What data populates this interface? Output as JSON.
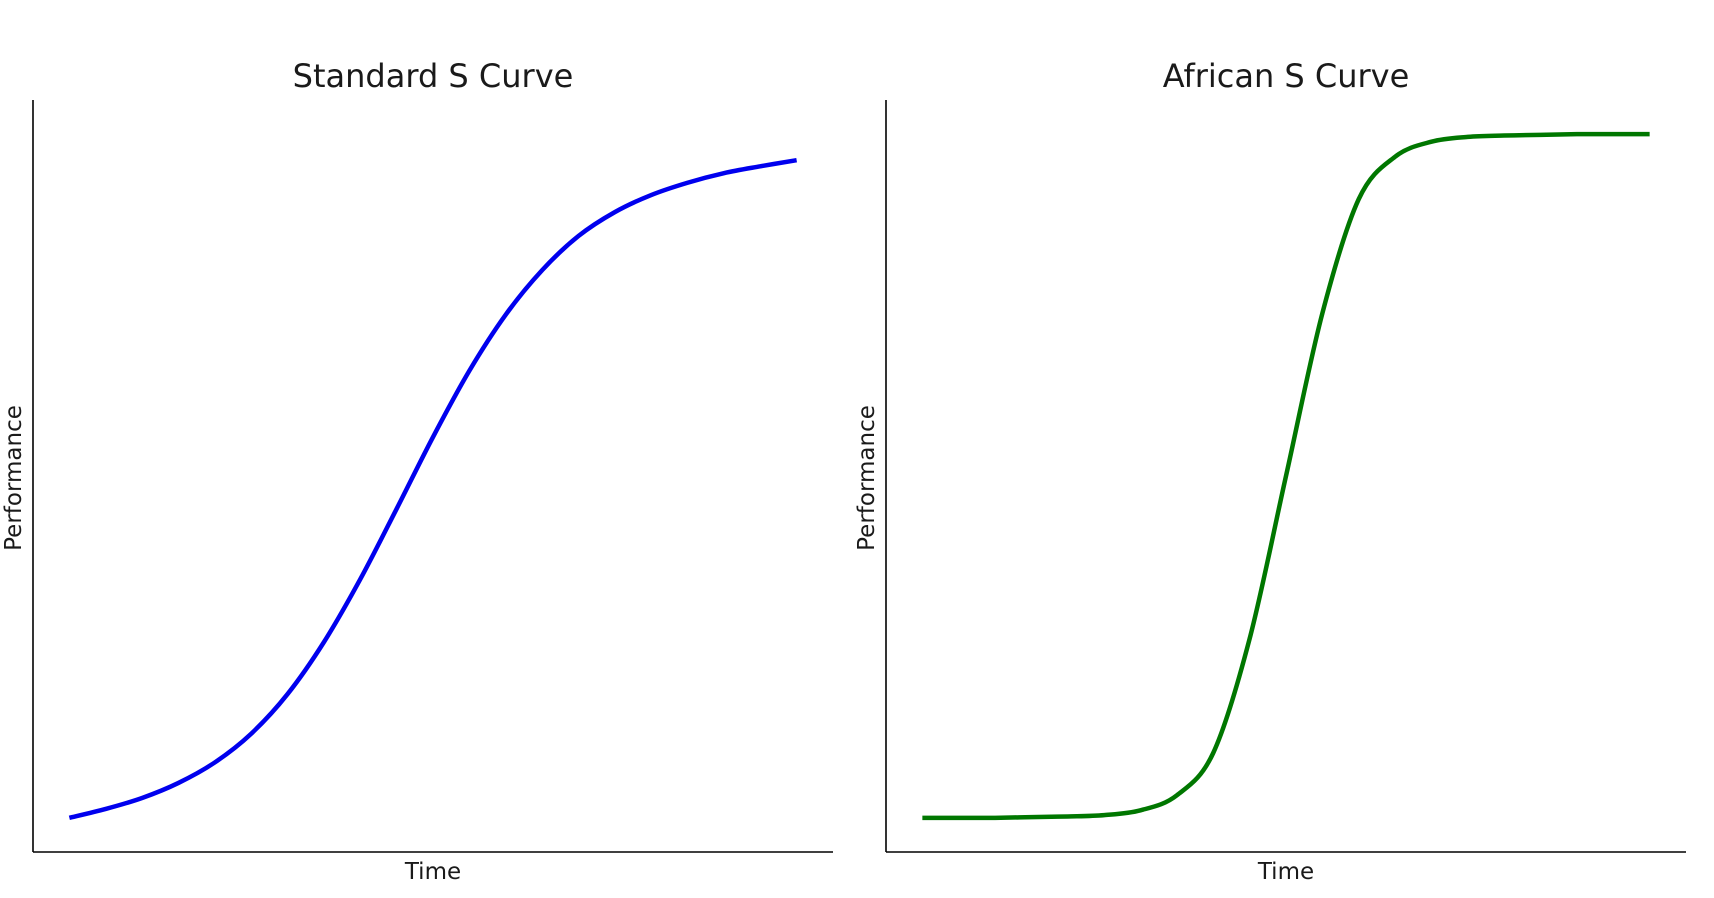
{
  "chart_data": [
    {
      "type": "line",
      "title": "Standard S Curve",
      "xlabel": "Time",
      "ylabel": "Performance",
      "x_ticks_visible": false,
      "y_ticks_visible": false,
      "grid": false,
      "spines": [
        "left",
        "bottom"
      ],
      "curve_shape": "logistic",
      "xlim": [
        -0.5,
        10.5
      ],
      "ylim": [
        -0.05,
        1.05
      ],
      "series": [
        {
          "color": "#0000ee",
          "x": [
            0,
            0.5,
            1,
            1.5,
            2,
            2.5,
            3,
            3.5,
            4,
            4.5,
            5,
            5.5,
            6,
            6.5,
            7,
            7.5,
            8,
            8.5,
            9,
            9.5,
            10
          ],
          "y": [
            0.0,
            0.013,
            0.029,
            0.051,
            0.081,
            0.123,
            0.181,
            0.257,
            0.349,
            0.452,
            0.557,
            0.654,
            0.736,
            0.801,
            0.851,
            0.886,
            0.911,
            0.929,
            0.943,
            0.953,
            0.962
          ]
        }
      ]
    },
    {
      "type": "line",
      "title": "African S Curve",
      "xlabel": "Time",
      "ylabel": "Performance",
      "x_ticks_visible": false,
      "y_ticks_visible": false,
      "grid": false,
      "spines": [
        "left",
        "bottom"
      ],
      "curve_shape": "logistic",
      "xlim": [
        -0.5,
        10.5
      ],
      "ylim": [
        -0.05,
        1.05
      ],
      "series": [
        {
          "color": "#007700",
          "x": [
            0,
            0.5,
            1,
            1.5,
            2,
            2.5,
            3,
            3.5,
            4,
            4.5,
            5,
            5.5,
            6,
            6.5,
            7,
            7.5,
            8,
            8.5,
            9,
            9.5,
            10
          ],
          "y": [
            0.0,
            0.0,
            0.0,
            0.001,
            0.002,
            0.004,
            0.011,
            0.033,
            0.095,
            0.262,
            0.5,
            0.738,
            0.905,
            0.967,
            0.989,
            0.996,
            0.998,
            0.999,
            1.0,
            1.0,
            1.0
          ]
        }
      ]
    }
  ]
}
